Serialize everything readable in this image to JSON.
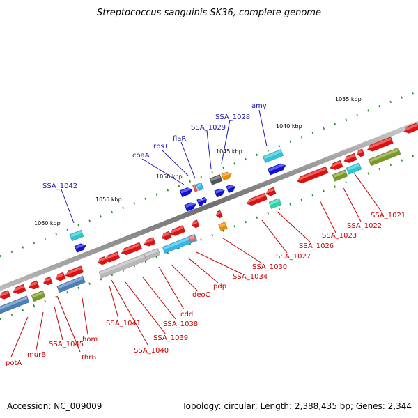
{
  "title": "Streptococcus sanguinis SK36, complete genome",
  "footer": {
    "accession": "Accession: NC_009009",
    "summary": "Topology: circular; Length: 2,388,435 bp; Genes: 2,344"
  },
  "colors": {
    "backbone": "#7a7a7a",
    "ruler_ticks": "#1e8a1e",
    "forward_label": "#1a1ab0",
    "reverse_label": "#c80000"
  },
  "kbp_labels": [
    "1035 kbp",
    "1040 kbp",
    "1045 kbp",
    "1050 kbp",
    "1055 kbp",
    "1060 kbp"
  ],
  "top_gene_labels": [
    "amy",
    "SSA_1028",
    "SSA_1029",
    "flaR",
    "rpsT",
    "coaA",
    "SSA_1042"
  ],
  "bottom_gene_labels": [
    "SSA_1021",
    "SSA_1022",
    "SSA_1023",
    "SSA_1026",
    "SSA_1027",
    "SSA_1030",
    "SSA_1034",
    "pdp",
    "deoC",
    "cdd",
    "SSA_1038",
    "SSA_1039",
    "SSA_1040",
    "SSA_1041",
    "hom",
    "thrB",
    "SSA_1045",
    "murB",
    "potA"
  ]
}
